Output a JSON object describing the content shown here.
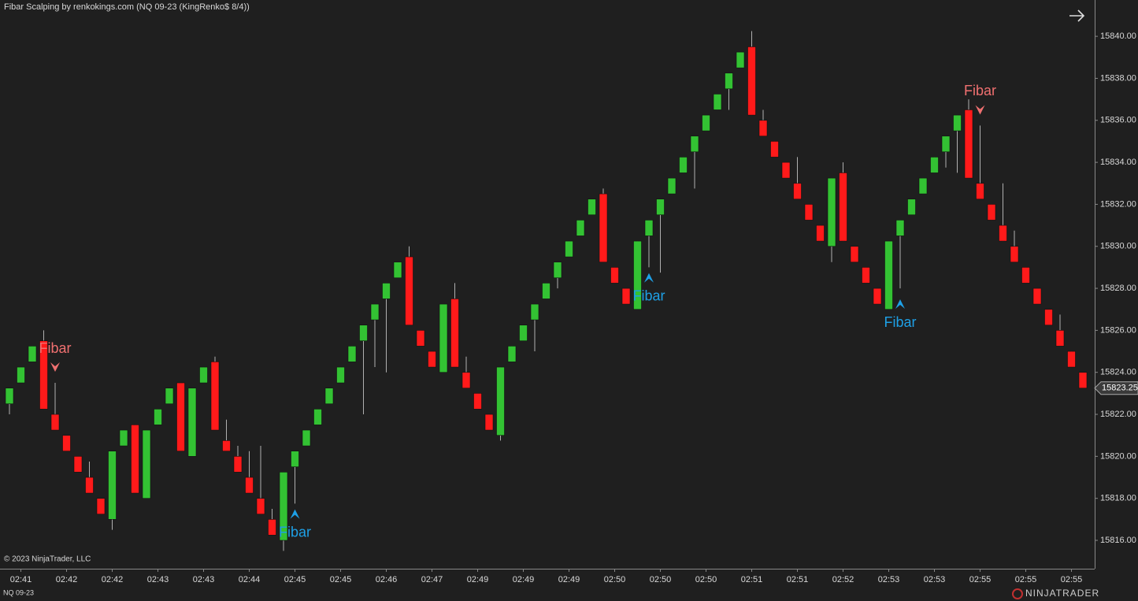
{
  "chart_data": {
    "type": "candlestick",
    "title": "Fibar Scalping by renkokings.com (NQ 09-23 (KingRenko$ 8/4))",
    "copyright": "© 2023 NinjaTrader, LLC",
    "instrument": "NQ 09-23",
    "brand": "NINJATRADER",
    "up_color": "#33c233",
    "down_color": "#ff1a1a",
    "wick_color": "#b0b0b0",
    "categories": [
      null,
      "02:41",
      null,
      null,
      null,
      "02:42",
      null,
      null,
      null,
      "02:42",
      null,
      null,
      null,
      "02:43",
      null,
      null,
      null,
      "02:43",
      null,
      null,
      null,
      "02:44",
      null,
      null,
      null,
      "02:45",
      null,
      null,
      null,
      "02:45",
      null,
      null,
      null,
      "02:46",
      null,
      null,
      null,
      "02:47",
      null,
      null,
      null,
      "02:49",
      null,
      null,
      null,
      "02:49",
      null,
      null,
      null,
      "02:49",
      null,
      null,
      null,
      "02:50",
      null,
      null,
      null,
      "02:50",
      null,
      null,
      null,
      "02:50",
      null,
      null,
      null,
      "02:51",
      null,
      null,
      null,
      "02:51",
      null,
      null,
      null,
      "02:52",
      null,
      null,
      null,
      "02:53",
      null,
      null,
      null,
      "02:53",
      null,
      null,
      null,
      "02:55",
      null,
      null,
      null,
      "02:55",
      null,
      null,
      null,
      "02:55",
      null
    ],
    "open": [
      15822.5,
      15823.5,
      15824.5,
      15825.5,
      15822.0,
      15821.0,
      15820.0,
      15819.0,
      15818.0,
      15817.0,
      15820.5,
      15821.5,
      15818.0,
      15821.5,
      15822.5,
      15823.5,
      15820.0,
      15823.5,
      15824.5,
      15820.75,
      15820.0,
      15819.0,
      15818.0,
      15817.0,
      15816.0,
      15819.5,
      15820.5,
      15821.5,
      15822.5,
      15823.5,
      15824.5,
      15825.5,
      15826.5,
      15827.5,
      15828.5,
      15829.5,
      15826.0,
      15825.0,
      15824.0,
      15827.5,
      15824.0,
      15823.0,
      15822.0,
      15821.0,
      15824.5,
      15825.5,
      15826.5,
      15827.5,
      15828.5,
      15829.5,
      15830.5,
      15831.5,
      15832.5,
      15829.0,
      15828.0,
      15827.0,
      15830.5,
      15831.5,
      15832.5,
      15833.5,
      15834.5,
      15835.5,
      15836.5,
      15837.5,
      15838.5,
      15839.5,
      15836.0,
      15835.0,
      15834.0,
      15833.0,
      15832.0,
      15831.0,
      15830.0,
      15833.5,
      15830.0,
      15829.0,
      15828.0,
      15827.0,
      15830.5,
      15831.5,
      15832.5,
      15833.5,
      15834.5,
      15835.5,
      15836.5,
      15833.0,
      15832.0,
      15831.0,
      15830.0,
      15829.0,
      15828.0,
      15827.0,
      15826.0,
      15825.0,
      15824.0
    ],
    "high": [
      15823.25,
      15824.25,
      15825.25,
      15826.0,
      15823.5,
      15821.0,
      15820.0,
      15819.75,
      15818.0,
      15820.25,
      15821.25,
      15821.5,
      15821.25,
      15822.25,
      15823.25,
      15823.5,
      15823.25,
      15824.25,
      15824.75,
      15821.75,
      15820.5,
      15820.25,
      15820.5,
      15817.5,
      15819.25,
      15820.25,
      15821.25,
      15822.25,
      15823.25,
      15824.25,
      15825.25,
      15826.25,
      15827.25,
      15828.25,
      15829.25,
      15830.0,
      15826.0,
      15825.0,
      15827.25,
      15828.25,
      15824.75,
      15823.0,
      15822.0,
      15824.25,
      15825.25,
      15826.25,
      15827.25,
      15828.25,
      15829.25,
      15830.25,
      15831.25,
      15832.25,
      15832.75,
      15829.0,
      15828.0,
      15830.25,
      15831.25,
      15832.25,
      15833.25,
      15834.25,
      15835.25,
      15836.25,
      15837.25,
      15838.25,
      15839.25,
      15840.25,
      15836.5,
      15835.0,
      15834.0,
      15834.25,
      15832.0,
      15831.0,
      15833.25,
      15834.0,
      15830.0,
      15829.0,
      15828.0,
      15830.25,
      15831.25,
      15832.25,
      15833.25,
      15834.25,
      15835.25,
      15836.25,
      15837.0,
      15835.75,
      15832.0,
      15833.0,
      15830.75,
      15829.0,
      15828.0,
      15827.0,
      15826.75,
      15825.0,
      15824.0
    ],
    "low": [
      15822.0,
      15823.5,
      15824.5,
      15822.25,
      15821.25,
      15820.25,
      15819.25,
      15818.25,
      15817.25,
      15816.5,
      15820.5,
      15818.25,
      15818.0,
      15821.5,
      15822.5,
      15820.25,
      15820.0,
      15823.5,
      15821.25,
      15820.25,
      15819.25,
      15818.25,
      15817.25,
      15816.25,
      15815.5,
      15817.75,
      15820.5,
      15821.5,
      15822.5,
      15823.5,
      15824.5,
      15822.0,
      15824.25,
      15824.0,
      15828.5,
      15826.25,
      15825.25,
      15824.25,
      15824.0,
      15824.25,
      15823.25,
      15822.25,
      15821.25,
      15820.75,
      15824.5,
      15825.5,
      15825.0,
      15827.5,
      15828.0,
      15829.5,
      15830.5,
      15831.5,
      15829.25,
      15828.25,
      15827.25,
      15827.0,
      15829.0,
      15828.75,
      15832.5,
      15833.5,
      15832.75,
      15835.5,
      15836.5,
      15836.5,
      15838.5,
      15836.25,
      15835.25,
      15834.25,
      15833.25,
      15832.25,
      15831.25,
      15830.25,
      15829.25,
      15830.25,
      15829.25,
      15828.25,
      15827.25,
      15827.0,
      15828.0,
      15831.5,
      15832.5,
      15833.5,
      15833.75,
      15833.5,
      15833.25,
      15832.25,
      15831.25,
      15830.25,
      15829.25,
      15828.25,
      15827.25,
      15826.25,
      15825.25,
      15824.25,
      15823.25
    ],
    "close": [
      15823.25,
      15824.25,
      15825.25,
      15822.25,
      15821.25,
      15820.25,
      15819.25,
      15818.25,
      15817.25,
      15820.25,
      15821.25,
      15818.25,
      15821.25,
      15822.25,
      15823.25,
      15820.25,
      15823.25,
      15824.25,
      15821.25,
      15820.25,
      15819.25,
      15818.25,
      15817.25,
      15816.25,
      15819.25,
      15820.25,
      15821.25,
      15822.25,
      15823.25,
      15824.25,
      15825.25,
      15826.25,
      15827.25,
      15828.25,
      15829.25,
      15826.25,
      15825.25,
      15824.25,
      15827.25,
      15824.25,
      15823.25,
      15822.25,
      15821.25,
      15824.25,
      15825.25,
      15826.25,
      15827.25,
      15828.25,
      15829.25,
      15830.25,
      15831.25,
      15832.25,
      15829.25,
      15828.25,
      15827.25,
      15830.25,
      15831.25,
      15832.25,
      15833.25,
      15834.25,
      15835.25,
      15836.25,
      15837.25,
      15838.25,
      15839.25,
      15836.25,
      15835.25,
      15834.25,
      15833.25,
      15832.25,
      15831.25,
      15830.25,
      15833.25,
      15830.25,
      15829.25,
      15828.25,
      15827.25,
      15830.25,
      15831.25,
      15832.25,
      15833.25,
      15834.25,
      15835.25,
      15836.25,
      15833.25,
      15832.25,
      15831.25,
      15830.25,
      15829.25,
      15828.25,
      15827.25,
      15826.25,
      15825.25,
      15824.25,
      15823.25
    ],
    "ylim": [
      15814.65,
      15841.73
    ],
    "yticks": [
      {
        "value": 15816,
        "label": "15816.00"
      },
      {
        "value": 15818,
        "label": "15818.00"
      },
      {
        "value": 15820,
        "label": "15820.00"
      },
      {
        "value": 15822,
        "label": "15822.00"
      },
      {
        "value": 15824,
        "label": "15824.00"
      },
      {
        "value": 15826,
        "label": "15826.00"
      },
      {
        "value": 15828,
        "label": "15828.00"
      },
      {
        "value": 15830,
        "label": "15830.00"
      },
      {
        "value": 15832,
        "label": "15832.00"
      },
      {
        "value": 15834,
        "label": "15834.00"
      },
      {
        "value": 15836,
        "label": "15836.00"
      },
      {
        "value": 15838,
        "label": "15838.00"
      },
      {
        "value": 15840,
        "label": "15840.00"
      }
    ],
    "last_price": 15823.25,
    "annotations": [
      {
        "text": "Fibar",
        "candle": 4,
        "value": 15824.25,
        "direction": "down",
        "color": "#f07070"
      },
      {
        "text": "Fibar",
        "candle": 25,
        "value": 15817.25,
        "direction": "up",
        "color": "#1ea0e6"
      },
      {
        "text": "Fibar",
        "candle": 56,
        "value": 15828.5,
        "direction": "up",
        "color": "#1ea0e6"
      },
      {
        "text": "Fibar",
        "candle": 78,
        "value": 15827.25,
        "direction": "up",
        "color": "#1ea0e6"
      },
      {
        "text": "Fibar",
        "candle": 85,
        "value": 15836.5,
        "direction": "down",
        "color": "#f07070"
      }
    ]
  }
}
